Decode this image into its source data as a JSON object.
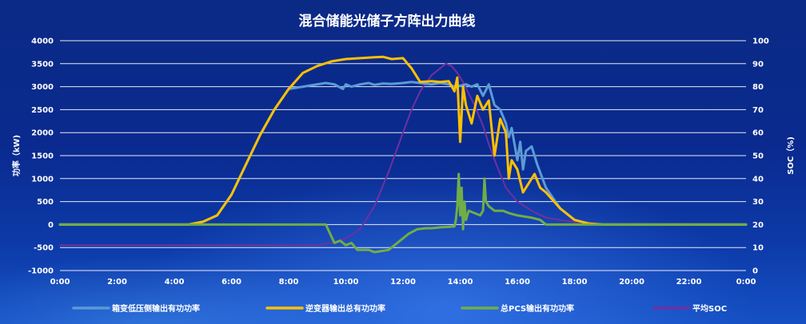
{
  "chart_data": {
    "type": "line",
    "title": "混合储能光储子方阵出力曲线",
    "ylabel_left": "功率（kW)",
    "ylabel_right": "SOC（%)",
    "x_ticks": [
      "0:00",
      "2:00",
      "4:00",
      "6:00",
      "8:00",
      "10:00",
      "12:00",
      "14:00",
      "16:00",
      "18:00",
      "20:00",
      "22:00",
      "0:00"
    ],
    "xlim_hours": [
      0,
      24
    ],
    "ylim_left": [
      -1000,
      4000
    ],
    "left_ticks": [
      "4000",
      "3500",
      "3000",
      "2500",
      "2000",
      "1500",
      "1000",
      "500",
      "0",
      "-500",
      "-1000"
    ],
    "ylim_right": [
      0,
      100
    ],
    "right_ticks": [
      "100",
      "90",
      "80",
      "70",
      "60",
      "50",
      "40",
      "30",
      "20",
      "10",
      "0"
    ],
    "grid": true,
    "legend_position": "bottom",
    "series": [
      {
        "name": "箱变低压侧输出有功功率",
        "axis": "left",
        "color": "#5b9bd5",
        "x": [
          0,
          4.5,
          5,
          5.5,
          6,
          6.5,
          7,
          7.5,
          8,
          8.5,
          9,
          9.3,
          9.6,
          9.9,
          10,
          10.2,
          10.5,
          10.8,
          11,
          11.3,
          11.6,
          12,
          12.3,
          12.6,
          13,
          13.3,
          13.6,
          13.8,
          14,
          14.2,
          14.4,
          14.6,
          14.8,
          15,
          15.2,
          15.4,
          15.6,
          15.7,
          15.8,
          16,
          16.1,
          16.2,
          16.3,
          16.5,
          16.7,
          17,
          17.5,
          18,
          18.5,
          19,
          24
        ],
        "y": [
          0,
          0,
          60,
          200,
          650,
          1300,
          1950,
          2500,
          2950,
          3000,
          3050,
          3080,
          3050,
          2950,
          3050,
          3000,
          3050,
          3080,
          3040,
          3070,
          3060,
          3080,
          3100,
          3080,
          3050,
          3080,
          3050,
          3000,
          3020,
          3050,
          3000,
          3050,
          2800,
          3050,
          2600,
          2500,
          2200,
          1900,
          2100,
          1400,
          1800,
          1200,
          1600,
          1700,
          1300,
          800,
          350,
          100,
          20,
          0,
          0
        ]
      },
      {
        "name": "逆变器输出总有功功率",
        "axis": "left",
        "color": "#ffc000",
        "x": [
          0,
          4.5,
          5,
          5.5,
          6,
          6.5,
          7,
          7.5,
          8,
          8.5,
          9,
          9.5,
          10,
          10.5,
          11,
          11.3,
          11.6,
          12,
          12.3,
          12.6,
          13,
          13.3,
          13.6,
          13.8,
          13.9,
          14,
          14.1,
          14.2,
          14.4,
          14.6,
          14.8,
          15,
          15.2,
          15.4,
          15.6,
          15.7,
          15.8,
          16,
          16.2,
          16.4,
          16.6,
          16.8,
          17,
          17.5,
          18,
          18.5,
          19,
          24
        ],
        "y": [
          0,
          0,
          60,
          200,
          650,
          1300,
          1950,
          2500,
          2950,
          3300,
          3450,
          3550,
          3600,
          3620,
          3640,
          3650,
          3600,
          3620,
          3400,
          3100,
          3120,
          3100,
          3120,
          2900,
          3200,
          1800,
          3000,
          2600,
          2200,
          2800,
          2500,
          2700,
          1500,
          2300,
          2000,
          1000,
          1400,
          1200,
          700,
          900,
          1100,
          800,
          700,
          350,
          100,
          20,
          0,
          0
        ]
      },
      {
        "name": "总PCS输出有功功率",
        "axis": "left",
        "color": "#70ad47",
        "x": [
          0,
          9.3,
          9.6,
          9.8,
          10,
          10.2,
          10.4,
          10.8,
          11,
          11.5,
          12,
          12.2,
          12.5,
          12.8,
          13,
          13.3,
          13.6,
          13.8,
          13.85,
          13.9,
          13.95,
          14,
          14.05,
          14.1,
          14.15,
          14.2,
          14.3,
          14.5,
          14.7,
          14.8,
          14.85,
          14.9,
          15,
          15.2,
          15.5,
          15.7,
          16,
          16.5,
          16.8,
          17,
          24
        ],
        "y": [
          0,
          0,
          -400,
          -350,
          -450,
          -400,
          -550,
          -550,
          -600,
          -550,
          -300,
          -200,
          -100,
          -80,
          -80,
          -60,
          -50,
          -40,
          100,
          400,
          1100,
          200,
          800,
          -100,
          500,
          100,
          300,
          250,
          200,
          300,
          1000,
          500,
          400,
          300,
          300,
          250,
          200,
          150,
          100,
          0,
          0
        ]
      },
      {
        "name": "平均SOC",
        "axis": "right",
        "color": "#7030a0",
        "x": [
          0,
          9,
          9.5,
          10,
          10.5,
          11,
          11.5,
          12,
          12.3,
          12.6,
          13,
          13.3,
          13.5,
          13.7,
          13.9,
          14.1,
          14.3,
          14.5,
          14.8,
          15,
          15.3,
          15.6,
          16,
          16.5,
          17,
          17.5,
          18,
          18.5,
          19,
          24
        ],
        "y": [
          11,
          11,
          12,
          14,
          18,
          28,
          43,
          60,
          70,
          78,
          85,
          88,
          90,
          89,
          86,
          82,
          77,
          72,
          63,
          55,
          45,
          36,
          30,
          26,
          23,
          22,
          21,
          21,
          20,
          20
        ]
      }
    ]
  }
}
